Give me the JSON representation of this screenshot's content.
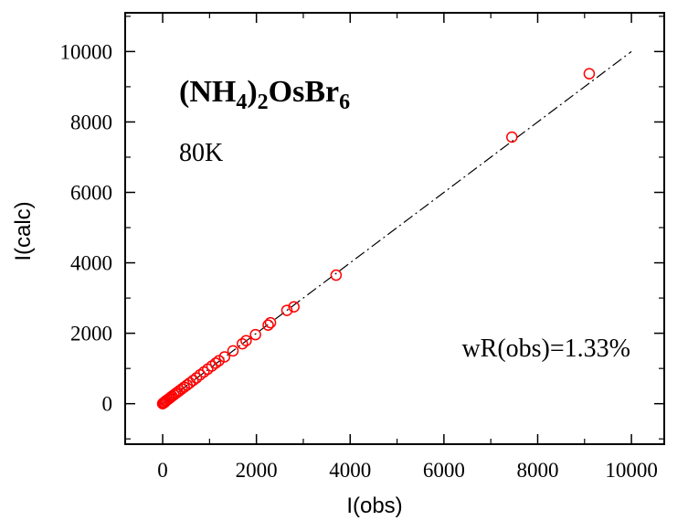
{
  "chart_data": {
    "type": "scatter",
    "title": {
      "base_1": "(NH",
      "sub_1": "4",
      "base_2": ")",
      "sub_2": "2",
      "base_3": "OsBr",
      "sub_3": "6"
    },
    "subtitle": "80K",
    "annotation": "wR(obs)=1.33%",
    "xlabel": "I(obs)",
    "ylabel": "I(calc)",
    "xlim": [
      -800,
      10700
    ],
    "ylim": [
      -1150,
      11100
    ],
    "xticks": [
      0,
      2000,
      4000,
      6000,
      8000,
      10000
    ],
    "yticks": [
      0,
      2000,
      4000,
      6000,
      8000,
      10000
    ],
    "xtick_labels": [
      "0",
      "2000",
      "4000",
      "6000",
      "8000",
      "10000"
    ],
    "ytick_labels": [
      "0",
      "2000",
      "4000",
      "6000",
      "8000",
      "10000"
    ],
    "grid": false,
    "marker_color": "#ff0000",
    "line_color": "#000000",
    "reference_line": {
      "style": "dash-dot",
      "x": [
        0,
        10000
      ],
      "y": [
        0,
        10000
      ]
    },
    "points": [
      {
        "x": 0,
        "y": 0
      },
      {
        "x": 10,
        "y": 15
      },
      {
        "x": 25,
        "y": 30
      },
      {
        "x": 40,
        "y": 35
      },
      {
        "x": 60,
        "y": 70
      },
      {
        "x": 80,
        "y": 90
      },
      {
        "x": 110,
        "y": 120
      },
      {
        "x": 140,
        "y": 145
      },
      {
        "x": 170,
        "y": 180
      },
      {
        "x": 200,
        "y": 210
      },
      {
        "x": 240,
        "y": 250
      },
      {
        "x": 280,
        "y": 290
      },
      {
        "x": 320,
        "y": 330
      },
      {
        "x": 360,
        "y": 370
      },
      {
        "x": 410,
        "y": 420
      },
      {
        "x": 460,
        "y": 470
      },
      {
        "x": 520,
        "y": 530
      },
      {
        "x": 580,
        "y": 590
      },
      {
        "x": 650,
        "y": 660
      },
      {
        "x": 720,
        "y": 730
      },
      {
        "x": 800,
        "y": 820
      },
      {
        "x": 880,
        "y": 900
      },
      {
        "x": 960,
        "y": 980
      },
      {
        "x": 1050,
        "y": 1070
      },
      {
        "x": 1130,
        "y": 1150
      },
      {
        "x": 1200,
        "y": 1220
      },
      {
        "x": 1320,
        "y": 1330
      },
      {
        "x": 1500,
        "y": 1500
      },
      {
        "x": 1700,
        "y": 1700
      },
      {
        "x": 1780,
        "y": 1790
      },
      {
        "x": 1980,
        "y": 1960
      },
      {
        "x": 2250,
        "y": 2230
      },
      {
        "x": 2300,
        "y": 2300
      },
      {
        "x": 2650,
        "y": 2650
      },
      {
        "x": 2800,
        "y": 2750
      },
      {
        "x": 3700,
        "y": 3650
      },
      {
        "x": 7450,
        "y": 7570
      },
      {
        "x": 9100,
        "y": 9370
      }
    ]
  }
}
